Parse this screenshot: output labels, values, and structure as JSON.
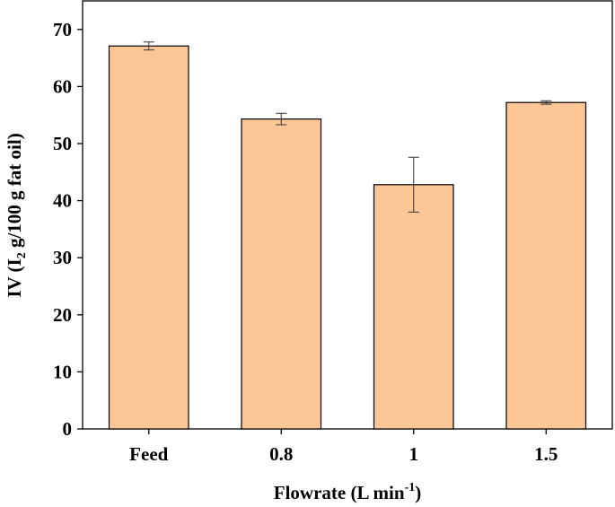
{
  "chart_data": {
    "type": "bar",
    "categories": [
      "Feed",
      "0.8",
      "1",
      "1.5"
    ],
    "values": [
      67.1,
      54.3,
      42.8,
      57.2
    ],
    "errors": [
      0.7,
      1.0,
      4.8,
      0.3
    ],
    "ylim": [
      0,
      75
    ],
    "yticks": [
      0,
      10,
      20,
      30,
      40,
      50,
      60,
      70
    ],
    "xlabel": {
      "main": "Flowrate (L min",
      "sup": "-1",
      "close": ")"
    },
    "ylabel": {
      "main": "IV (I",
      "sub": "2",
      "rest": " g/100 g fat oil)"
    },
    "grid": false,
    "colors": {
      "bar_fill": "#FDC697",
      "bar_stroke": "#000000",
      "axis": "#000000"
    }
  }
}
